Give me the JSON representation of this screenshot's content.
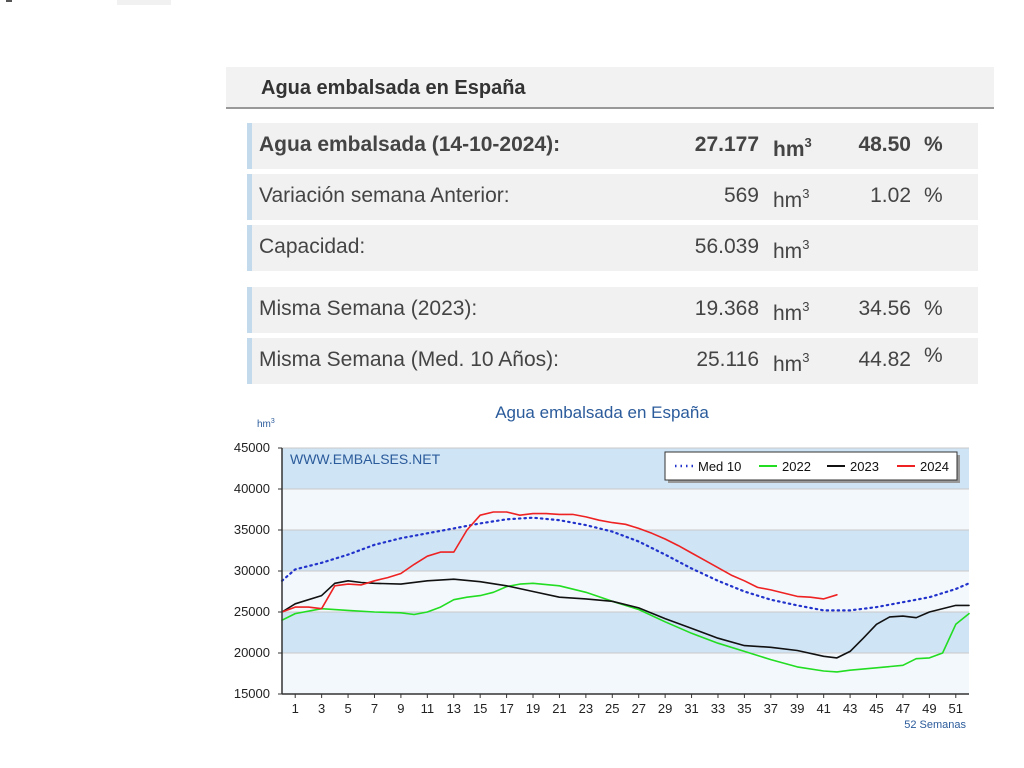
{
  "header": {
    "title": "Agua embalsada en España"
  },
  "summary_rows": [
    {
      "label": "Agua embalsada (14-10-2024):",
      "value": "27.177",
      "unit": "hm",
      "unit_sup": "3",
      "pct": "48.50",
      "pct_sign": "%",
      "bold": true
    },
    {
      "label": "Variación semana Anterior:",
      "value": "569",
      "unit": "hm",
      "unit_sup": "3",
      "pct": "1.02",
      "pct_sign": "%",
      "bold": false
    },
    {
      "label": "Capacidad:",
      "value": "56.039",
      "unit": "hm",
      "unit_sup": "3",
      "pct": "",
      "pct_sign": "",
      "bold": false
    },
    {
      "label": "Misma Semana (2023):",
      "value": "19.368",
      "unit": "hm",
      "unit_sup": "3",
      "pct": "34.56",
      "pct_sign": "%",
      "bold": false
    },
    {
      "label": "Misma Semana (Med. 10 Años):",
      "value": "25.116",
      "unit": "hm",
      "unit_sup": "3",
      "pct": "44.82",
      "pct_sign": "%",
      "bold": false
    }
  ],
  "chart_data": {
    "type": "line",
    "title": "Agua embalsada en España",
    "ylabel": "hm",
    "ylabel_sup": "3",
    "xlabel": "52 Semanas",
    "watermark": "WWW.EMBALSES.NET",
    "ylim": [
      15000,
      45000
    ],
    "xlim": [
      0,
      52
    ],
    "yticks": [
      15000,
      20000,
      25000,
      30000,
      35000,
      40000,
      45000
    ],
    "xticks": [
      1,
      3,
      5,
      7,
      9,
      11,
      13,
      15,
      17,
      19,
      21,
      23,
      25,
      27,
      29,
      31,
      33,
      35,
      37,
      39,
      41,
      43,
      45,
      47,
      49,
      51
    ],
    "grid": true,
    "legend_position": "top-right",
    "colors": {
      "panel_fill": "#e3f0fa",
      "band_fill": "#cfe4f5",
      "title": "#2b5b9b"
    },
    "series": [
      {
        "name": "Med 10",
        "color": "#2233cc",
        "style": "dotted",
        "x": [
          0,
          1,
          3,
          5,
          7,
          9,
          11,
          13,
          15,
          17,
          19,
          21,
          23,
          25,
          27,
          29,
          31,
          33,
          35,
          37,
          39,
          41,
          43,
          45,
          47,
          49,
          51,
          52
        ],
        "y": [
          28800,
          30200,
          31000,
          32000,
          33200,
          34000,
          34600,
          35200,
          35800,
          36300,
          36500,
          36200,
          35600,
          34800,
          33600,
          32000,
          30300,
          28800,
          27500,
          26500,
          25800,
          25200,
          25200,
          25600,
          26200,
          26800,
          27800,
          28500
        ]
      },
      {
        "name": "2022",
        "color": "#22dd22",
        "style": "solid",
        "x": [
          0,
          1,
          3,
          5,
          7,
          9,
          10,
          11,
          12,
          13,
          14,
          15,
          16,
          17,
          18,
          19,
          21,
          23,
          25,
          27,
          29,
          31,
          33,
          35,
          37,
          39,
          41,
          42,
          43,
          45,
          47,
          48,
          49,
          50,
          51,
          52
        ],
        "y": [
          24000,
          24800,
          25400,
          25200,
          25000,
          24900,
          24700,
          25000,
          25600,
          26500,
          26800,
          27000,
          27400,
          28100,
          28400,
          28500,
          28200,
          27400,
          26300,
          25300,
          23800,
          22400,
          21200,
          20200,
          19200,
          18300,
          17800,
          17700,
          17900,
          18200,
          18500,
          19300,
          19400,
          20000,
          23500,
          24800
        ]
      },
      {
        "name": "2023",
        "color": "#111111",
        "style": "solid",
        "x": [
          0,
          1,
          3,
          4,
          5,
          6,
          7,
          9,
          11,
          13,
          15,
          17,
          19,
          21,
          23,
          25,
          27,
          29,
          31,
          33,
          35,
          37,
          39,
          41,
          42,
          43,
          44,
          45,
          46,
          47,
          48,
          49,
          51,
          52
        ],
        "y": [
          25000,
          26000,
          27000,
          28500,
          28800,
          28600,
          28500,
          28400,
          28800,
          29000,
          28700,
          28200,
          27500,
          26800,
          26600,
          26300,
          25500,
          24200,
          23000,
          21800,
          20900,
          20700,
          20300,
          19600,
          19400,
          20200,
          21800,
          23500,
          24400,
          24500,
          24300,
          25000,
          25800,
          25800
        ]
      },
      {
        "name": "2024",
        "color": "#ee2222",
        "style": "solid",
        "x": [
          0,
          1,
          2,
          3,
          4,
          5,
          6,
          7,
          8,
          9,
          10,
          11,
          12,
          13,
          14,
          15,
          16,
          17,
          18,
          19,
          20,
          21,
          22,
          23,
          24,
          25,
          26,
          27,
          28,
          29,
          30,
          31,
          32,
          33,
          34,
          35,
          36,
          37,
          38,
          39,
          40,
          41,
          42
        ],
        "y": [
          25000,
          25600,
          25600,
          25400,
          28200,
          28400,
          28300,
          28800,
          29200,
          29700,
          30800,
          31800,
          32300,
          32300,
          35000,
          36800,
          37200,
          37200,
          36800,
          37000,
          37000,
          36900,
          36900,
          36600,
          36200,
          35900,
          35700,
          35200,
          34600,
          33900,
          33100,
          32200,
          31300,
          30400,
          29500,
          28800,
          28000,
          27700,
          27300,
          26900,
          26800,
          26600,
          27100
        ]
      }
    ]
  }
}
